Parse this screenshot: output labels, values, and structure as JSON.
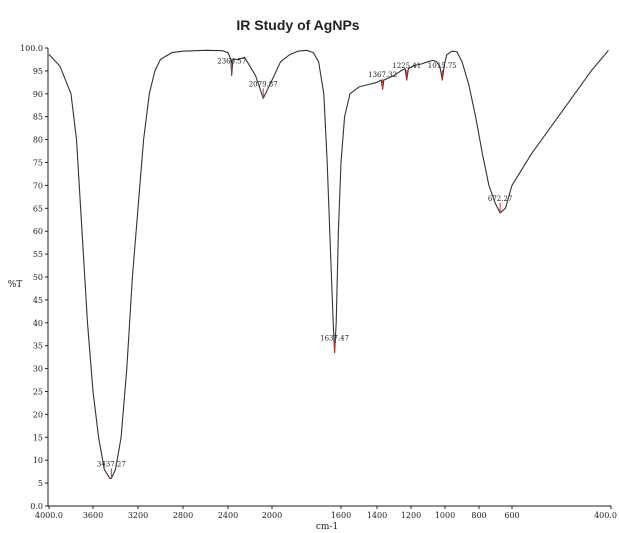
{
  "chart_data": {
    "type": "line",
    "title": "IR Study of AgNPs",
    "xlabel": "cm-1",
    "ylabel": "%T",
    "xlim": [
      4000,
      400
    ],
    "ylim": [
      0,
      100
    ],
    "x_reversed": true,
    "grid": false,
    "legend": "none",
    "x_ticks": [
      "4000.0",
      "3600",
      "3200",
      "2800",
      "2400",
      "2000",
      "1600",
      "1400",
      "1200",
      "1000",
      "800",
      "600",
      "400.0"
    ],
    "y_ticks": [
      "100.0",
      "95",
      "90",
      "85",
      "80",
      "75",
      "70",
      "65",
      "60",
      "55",
      "50",
      "45",
      "40",
      "35",
      "30",
      "25",
      "20",
      "15",
      "10",
      "5",
      "0.0"
    ],
    "series": [
      {
        "line_color": "#333333",
        "points": [
          [
            4000,
            98.6
          ],
          [
            3900,
            96
          ],
          [
            3800,
            90
          ],
          [
            3750,
            80
          ],
          [
            3700,
            60
          ],
          [
            3650,
            40
          ],
          [
            3600,
            25
          ],
          [
            3550,
            15
          ],
          [
            3500,
            8
          ],
          [
            3450,
            6
          ],
          [
            3437,
            6
          ],
          [
            3400,
            8
          ],
          [
            3350,
            15
          ],
          [
            3300,
            30
          ],
          [
            3250,
            50
          ],
          [
            3200,
            65
          ],
          [
            3150,
            80
          ],
          [
            3100,
            90
          ],
          [
            3050,
            95
          ],
          [
            3000,
            97.5
          ],
          [
            2900,
            99
          ],
          [
            2800,
            99.3
          ],
          [
            2600,
            99.5
          ],
          [
            2450,
            99.4
          ],
          [
            2400,
            99
          ],
          [
            2375,
            97.5
          ],
          [
            2366,
            94
          ],
          [
            2355,
            97.5
          ],
          [
            2300,
            97.5
          ],
          [
            2250,
            98
          ],
          [
            2200,
            96
          ],
          [
            2150,
            94
          ],
          [
            2100,
            90.5
          ],
          [
            2080,
            89
          ],
          [
            2060,
            90
          ],
          [
            2000,
            93
          ],
          [
            1950,
            97
          ],
          [
            1900,
            98.5
          ],
          [
            1850,
            99.3
          ],
          [
            1800,
            99.5
          ],
          [
            1760,
            99
          ],
          [
            1730,
            97
          ],
          [
            1700,
            90
          ],
          [
            1680,
            75
          ],
          [
            1660,
            55
          ],
          [
            1645,
            40
          ],
          [
            1637,
            33.5
          ],
          [
            1628,
            40
          ],
          [
            1615,
            60
          ],
          [
            1600,
            75
          ],
          [
            1580,
            85
          ],
          [
            1550,
            90
          ],
          [
            1500,
            91.5
          ],
          [
            1450,
            92
          ],
          [
            1400,
            92.5
          ],
          [
            1375,
            93
          ],
          [
            1367,
            91
          ],
          [
            1360,
            93
          ],
          [
            1330,
            93.5
          ],
          [
            1300,
            94
          ],
          [
            1260,
            95
          ],
          [
            1235,
            95.5
          ],
          [
            1225,
            93
          ],
          [
            1215,
            95.5
          ],
          [
            1180,
            96.2
          ],
          [
            1140,
            96.5
          ],
          [
            1100,
            97
          ],
          [
            1070,
            97.3
          ],
          [
            1050,
            97
          ],
          [
            1030,
            96
          ],
          [
            1016,
            93
          ],
          [
            1005,
            96
          ],
          [
            990,
            98.5
          ],
          [
            960,
            99.3
          ],
          [
            930,
            99.2
          ],
          [
            900,
            97
          ],
          [
            860,
            92
          ],
          [
            820,
            85
          ],
          [
            780,
            77
          ],
          [
            740,
            70
          ],
          [
            700,
            66
          ],
          [
            672,
            64
          ],
          [
            640,
            65
          ],
          [
            600,
            70
          ],
          [
            560,
            77
          ],
          [
            520,
            83
          ],
          [
            480,
            89
          ],
          [
            440,
            95
          ],
          [
            405,
            99.5
          ]
        ]
      }
    ],
    "annotations": [
      {
        "label": "3437.27",
        "x": 3437,
        "y": 6
      },
      {
        "label": "2366.57",
        "x": 2366,
        "y": 94
      },
      {
        "label": "2079.87",
        "x": 2080,
        "y": 89
      },
      {
        "label": "1637.47",
        "x": 1637,
        "y": 33.5
      },
      {
        "label": "1367.32",
        "x": 1367,
        "y": 91
      },
      {
        "label": "1225.41",
        "x": 1225,
        "y": 93
      },
      {
        "label": "1015.75",
        "x": 1016,
        "y": 93
      },
      {
        "label": "672.27",
        "x": 672,
        "y": 64
      }
    ]
  }
}
